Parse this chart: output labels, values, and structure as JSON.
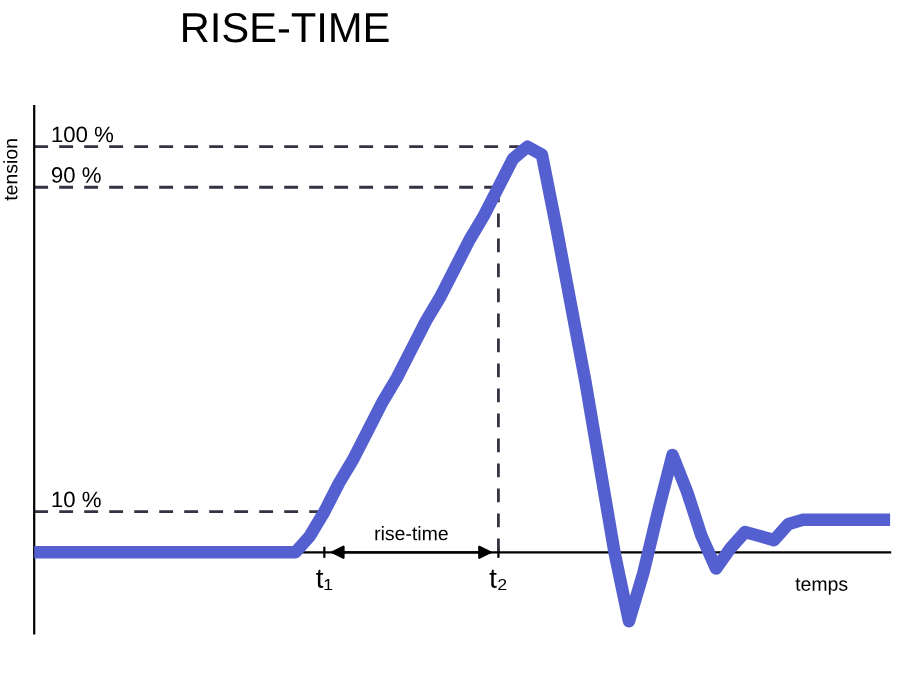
{
  "chart_data": {
    "type": "line",
    "title": "RISE-TIME",
    "xlabel": "temps",
    "ylabel": "tension",
    "annotations": [
      "rise-time"
    ],
    "categories": [
      null,
      null,
      null,
      null,
      null,
      null,
      null,
      null,
      null,
      null,
      null,
      null,
      null,
      null,
      null,
      null,
      null,
      null,
      null,
      null,
      "t₁",
      null,
      null,
      null,
      null,
      null,
      null,
      null,
      null,
      null,
      null,
      null,
      "t₂",
      null,
      null,
      null,
      null,
      null,
      null,
      null,
      null,
      null,
      null,
      null,
      null,
      null,
      null,
      null,
      null,
      null,
      null,
      null,
      null,
      null,
      null,
      null,
      null,
      null,
      null,
      null
    ],
    "series": [
      {
        "color": "#5560d0",
        "values": [
          0,
          0,
          0,
          0,
          0,
          0,
          0,
          0,
          0,
          0,
          0,
          0,
          0,
          0,
          0,
          0,
          0,
          0,
          0,
          4,
          10,
          17,
          23,
          30,
          37,
          43,
          50,
          57,
          63,
          70,
          77,
          83,
          90,
          97,
          100,
          98,
          80,
          61,
          42,
          21,
          0,
          -17,
          -5,
          10,
          24,
          15,
          4,
          -4,
          1,
          5,
          4,
          3,
          7,
          8,
          8,
          8,
          8,
          8,
          8,
          8
        ]
      }
    ],
    "ylim": [
      -20,
      110
    ],
    "yticks": [
      {
        "value": 10,
        "label": "10 %"
      },
      {
        "value": 90,
        "label": "90 %"
      },
      {
        "value": 100,
        "label": "100 %"
      }
    ],
    "ref_lines": [
      {
        "axis": "y",
        "value": 10,
        "line_style": "dashed"
      },
      {
        "axis": "y",
        "value": 90,
        "line_style": "dashed"
      },
      {
        "axis": "y",
        "value": 100,
        "line_style": "dashed"
      },
      {
        "axis": "x",
        "value": "t₂",
        "line_style": "dashed"
      }
    ],
    "grid": false,
    "legend": false,
    "marker": "none",
    "line_style": "solid"
  }
}
